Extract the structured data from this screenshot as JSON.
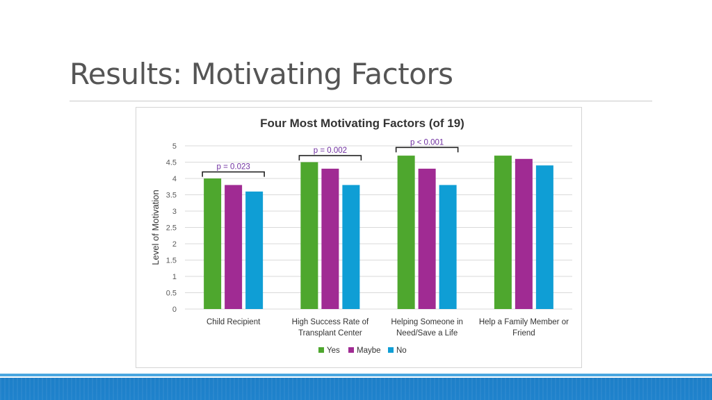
{
  "slide": {
    "title": "Results: Motivating Factors"
  },
  "colors": {
    "yes": "#4ea72e",
    "maybe": "#a02b93",
    "no": "#0f9ed5",
    "annotation": "#7030a0",
    "band": "#1f82cc"
  },
  "chart_data": {
    "type": "bar",
    "title": "Four Most Motivating Factors (of 19)",
    "ylabel": "Level of Motivation",
    "xlabel": "",
    "ylim": [
      0,
      5
    ],
    "ytick_step": 0.5,
    "yticks": [
      "0",
      "0.5",
      "1",
      "1.5",
      "2",
      "2.5",
      "3",
      "3.5",
      "4",
      "4.5",
      "5"
    ],
    "grid": true,
    "legend_position": "bottom",
    "categories": [
      [
        "Child Recipient"
      ],
      [
        "High Success Rate of",
        "Transplant Center"
      ],
      [
        "Helping Someone in",
        "Need/Save a Life"
      ],
      [
        "Help a Family Member or",
        "Friend"
      ]
    ],
    "series": [
      {
        "name": "Yes",
        "color": "#4ea72e",
        "values": [
          4.0,
          4.5,
          4.7,
          4.7
        ]
      },
      {
        "name": "Maybe",
        "color": "#a02b93",
        "values": [
          3.8,
          4.3,
          4.3,
          4.6
        ]
      },
      {
        "name": "No",
        "color": "#0f9ed5",
        "values": [
          3.6,
          3.8,
          3.8,
          4.4
        ]
      }
    ],
    "annotations": [
      {
        "category": 0,
        "text": "p = 0.023",
        "bracket_y": 4.2
      },
      {
        "category": 1,
        "text": "p = 0.002",
        "bracket_y": 4.7
      },
      {
        "category": 2,
        "text": "p < 0.001",
        "bracket_y": 4.95
      }
    ]
  }
}
